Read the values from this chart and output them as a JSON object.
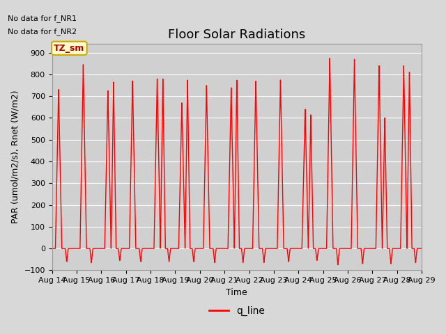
{
  "title": "Floor Solar Radiations",
  "xlabel": "Time",
  "ylabel": "PAR (umol/m2/s), Rnet (W/m2)",
  "ylim": [
    -100,
    940
  ],
  "yticks": [
    -100,
    0,
    100,
    200,
    300,
    400,
    500,
    600,
    700,
    800,
    900
  ],
  "xlim": [
    14,
    29
  ],
  "x_labels": [
    "Aug 14",
    "Aug 15",
    "Aug 16",
    "Aug 17",
    "Aug 18",
    "Aug 19",
    "Aug 20",
    "Aug 21",
    "Aug 22",
    "Aug 23",
    "Aug 24",
    "Aug 25",
    "Aug 26",
    "Aug 27",
    "Aug 28",
    "Aug 29"
  ],
  "line_color": "#ff0000",
  "line_width": 1.0,
  "background_color": "#d8d8d8",
  "plot_bg_color": "#d0d0d0",
  "grid_color": "#ffffff",
  "title_fontsize": 13,
  "label_fontsize": 9,
  "tick_fontsize": 8,
  "no_data_text1": "No data for f_NR1",
  "no_data_text2": "No data for f_NR2",
  "legend_label": "q_line",
  "tz_sm_label": "TZ_sm",
  "tz_sm_bg": "#ffffcc",
  "tz_sm_border": "#ccaa00",
  "tz_sm_text_color": "#aa0000",
  "day_peak1": [
    730,
    845,
    725,
    770,
    780,
    670,
    750,
    740,
    770,
    775,
    640,
    875,
    870,
    840,
    840
  ],
  "day_peak2": [
    0,
    0,
    765,
    0,
    780,
    775,
    0,
    775,
    0,
    0,
    615,
    0,
    0,
    600,
    810
  ],
  "day_neg": [
    -60,
    -65,
    -55,
    -60,
    -60,
    -60,
    -65,
    -65,
    -65,
    -60,
    -55,
    -75,
    -70,
    -70,
    -65
  ],
  "figwidth": 6.4,
  "figheight": 4.8,
  "dpi": 100
}
